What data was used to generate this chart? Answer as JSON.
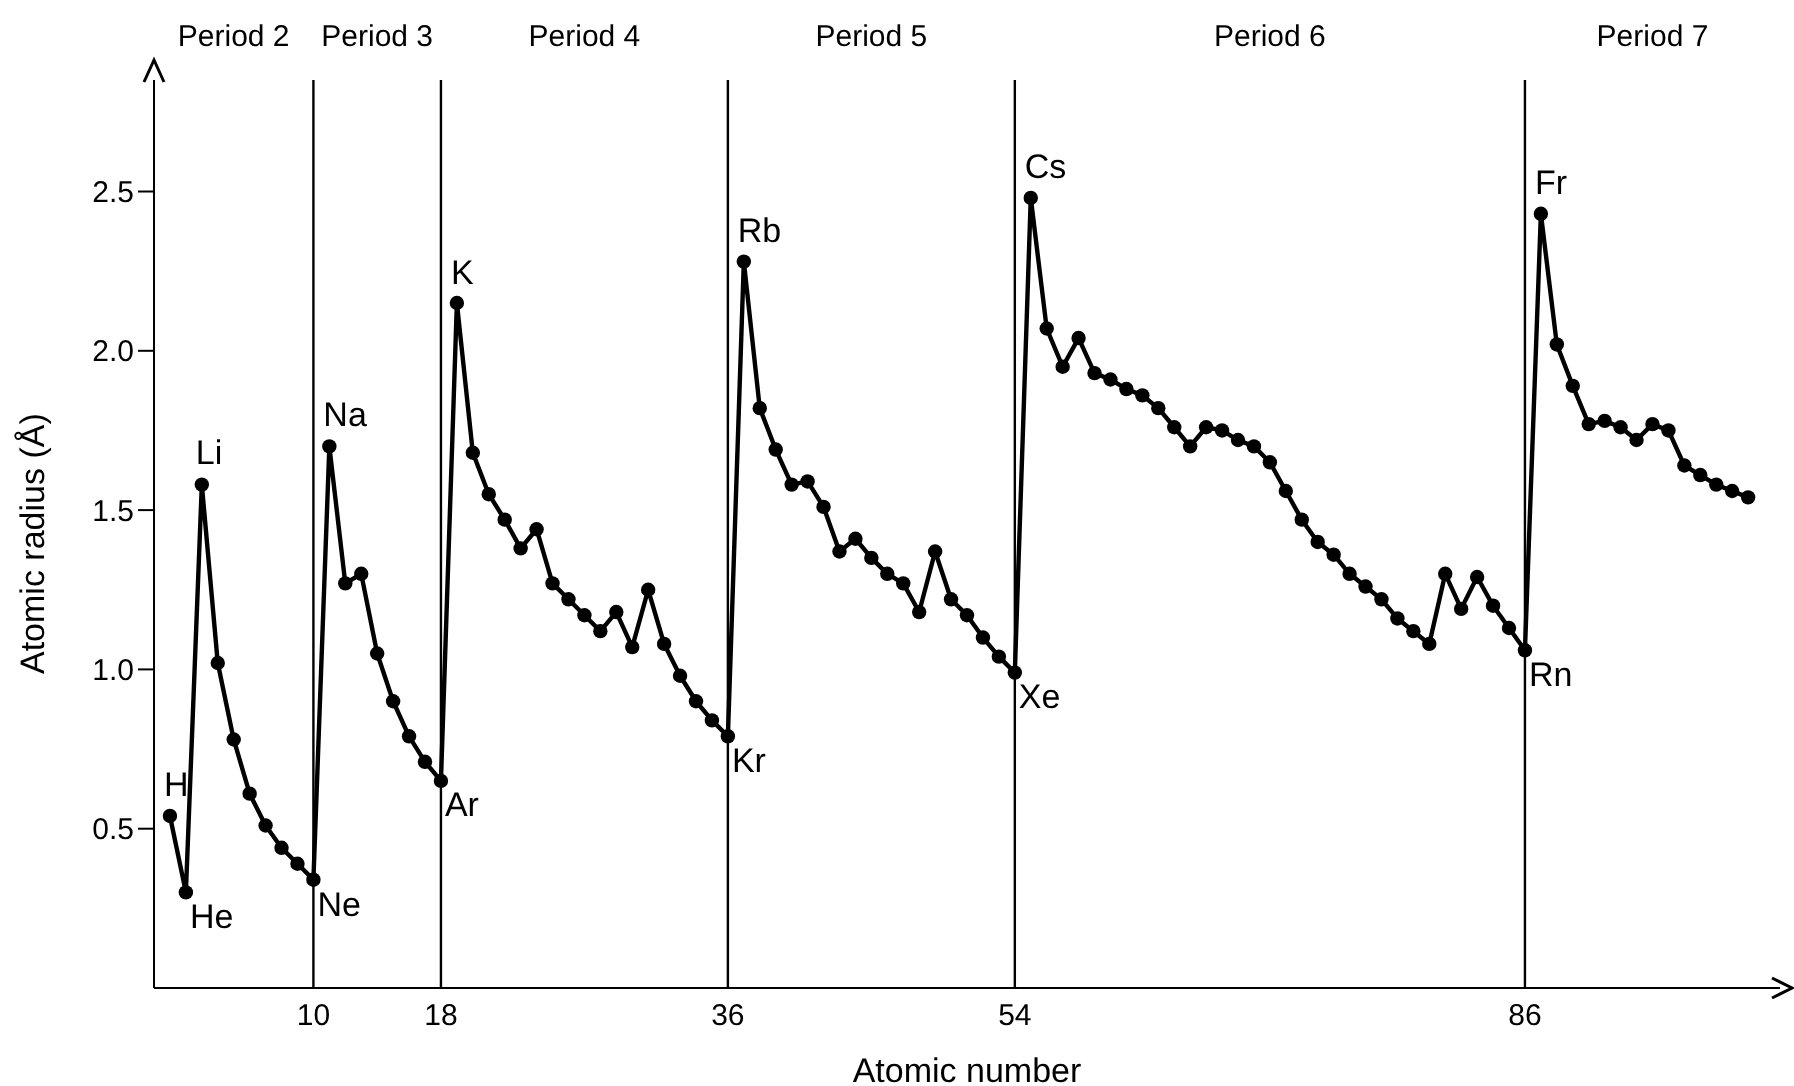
{
  "chart_data": {
    "type": "line",
    "xlabel": "Atomic number",
    "ylabel": "Atomic radius (Å)",
    "xlim": [
      0,
      102
    ],
    "xticks": [
      10,
      18,
      36,
      54,
      86
    ],
    "ylim": [
      0,
      2.85
    ],
    "yticks": [
      0.5,
      {
        "value": 1,
        "label": "1.0"
      },
      1.5,
      {
        "value": 2,
        "label": "2.0"
      },
      2.5
    ],
    "grid": false,
    "legend": false,
    "marker": "circle",
    "line_style": "solid",
    "x": [
      1,
      2,
      3,
      4,
      5,
      6,
      7,
      8,
      9,
      10,
      11,
      12,
      13,
      14,
      15,
      16,
      17,
      18,
      19,
      20,
      21,
      22,
      23,
      24,
      25,
      26,
      27,
      28,
      29,
      30,
      31,
      32,
      33,
      34,
      35,
      36,
      37,
      38,
      39,
      40,
      41,
      42,
      43,
      44,
      45,
      46,
      47,
      48,
      49,
      50,
      51,
      52,
      53,
      54,
      55,
      56,
      57,
      58,
      59,
      60,
      61,
      62,
      63,
      64,
      65,
      66,
      67,
      68,
      69,
      70,
      71,
      72,
      73,
      74,
      75,
      76,
      77,
      78,
      79,
      80,
      81,
      82,
      83,
      84,
      85,
      86,
      87,
      88,
      89,
      90,
      91,
      92,
      93,
      94,
      95,
      96,
      97,
      98,
      99,
      100
    ],
    "series": [
      {
        "color": "#000000",
        "values": [
          0.54,
          0.3,
          1.58,
          1.02,
          0.78,
          0.61,
          0.51,
          0.44,
          0.39,
          0.34,
          1.7,
          1.27,
          1.3,
          1.05,
          0.9,
          0.79,
          0.71,
          0.65,
          2.15,
          1.68,
          1.55,
          1.47,
          1.38,
          1.44,
          1.27,
          1.22,
          1.17,
          1.12,
          1.18,
          1.07,
          1.25,
          1.08,
          0.98,
          0.9,
          0.84,
          0.79,
          2.28,
          1.82,
          1.69,
          1.58,
          1.59,
          1.51,
          1.37,
          1.41,
          1.35,
          1.3,
          1.27,
          1.18,
          1.37,
          1.22,
          1.17,
          1.1,
          1.04,
          0.99,
          2.48,
          2.07,
          1.95,
          2.04,
          1.93,
          1.91,
          1.88,
          1.86,
          1.82,
          1.76,
          1.7,
          1.76,
          1.75,
          1.72,
          1.7,
          1.65,
          1.56,
          1.47,
          1.4,
          1.36,
          1.3,
          1.26,
          1.22,
          1.16,
          1.12,
          1.08,
          1.3,
          1.19,
          1.29,
          1.2,
          1.13,
          1.06,
          2.43,
          2.02,
          1.89,
          1.77,
          1.78,
          1.76,
          1.72,
          1.77,
          1.75,
          1.64,
          1.61,
          1.58,
          1.56,
          1.54
        ]
      }
    ],
    "ref_lines": [
      {
        "axis": "x",
        "value": 10,
        "color": "#000000"
      },
      {
        "axis": "x",
        "value": 18,
        "color": "#000000"
      },
      {
        "axis": "x",
        "value": 36,
        "color": "#000000"
      },
      {
        "axis": "x",
        "value": 54,
        "color": "#000000"
      },
      {
        "axis": "x",
        "value": 86,
        "color": "#000000"
      }
    ],
    "annotations": [
      "Period 2",
      "Period 3",
      "Period 4",
      "Period 5",
      "Period 6",
      "Period 7",
      {
        "text": "H",
        "x": 1,
        "y": 0.54
      },
      {
        "text": "He",
        "x": 2,
        "y": 0.3
      },
      {
        "text": "Li",
        "x": 3,
        "y": 1.58
      },
      {
        "text": "Ne",
        "x": 10,
        "y": 0.34
      },
      {
        "text": "Na",
        "x": 11,
        "y": 1.7
      },
      {
        "text": "Ar",
        "x": 18,
        "y": 0.65
      },
      {
        "text": "K",
        "x": 19,
        "y": 2.15
      },
      {
        "text": "Kr",
        "x": 36,
        "y": 0.79
      },
      {
        "text": "Rb",
        "x": 37,
        "y": 2.28
      },
      {
        "text": "Xe",
        "x": 54,
        "y": 0.99
      },
      {
        "text": "Cs",
        "x": 55,
        "y": 2.48
      },
      {
        "text": "Rn",
        "x": 86,
        "y": 1.06
      },
      {
        "text": "Fr",
        "x": 87,
        "y": 2.43
      }
    ]
  }
}
